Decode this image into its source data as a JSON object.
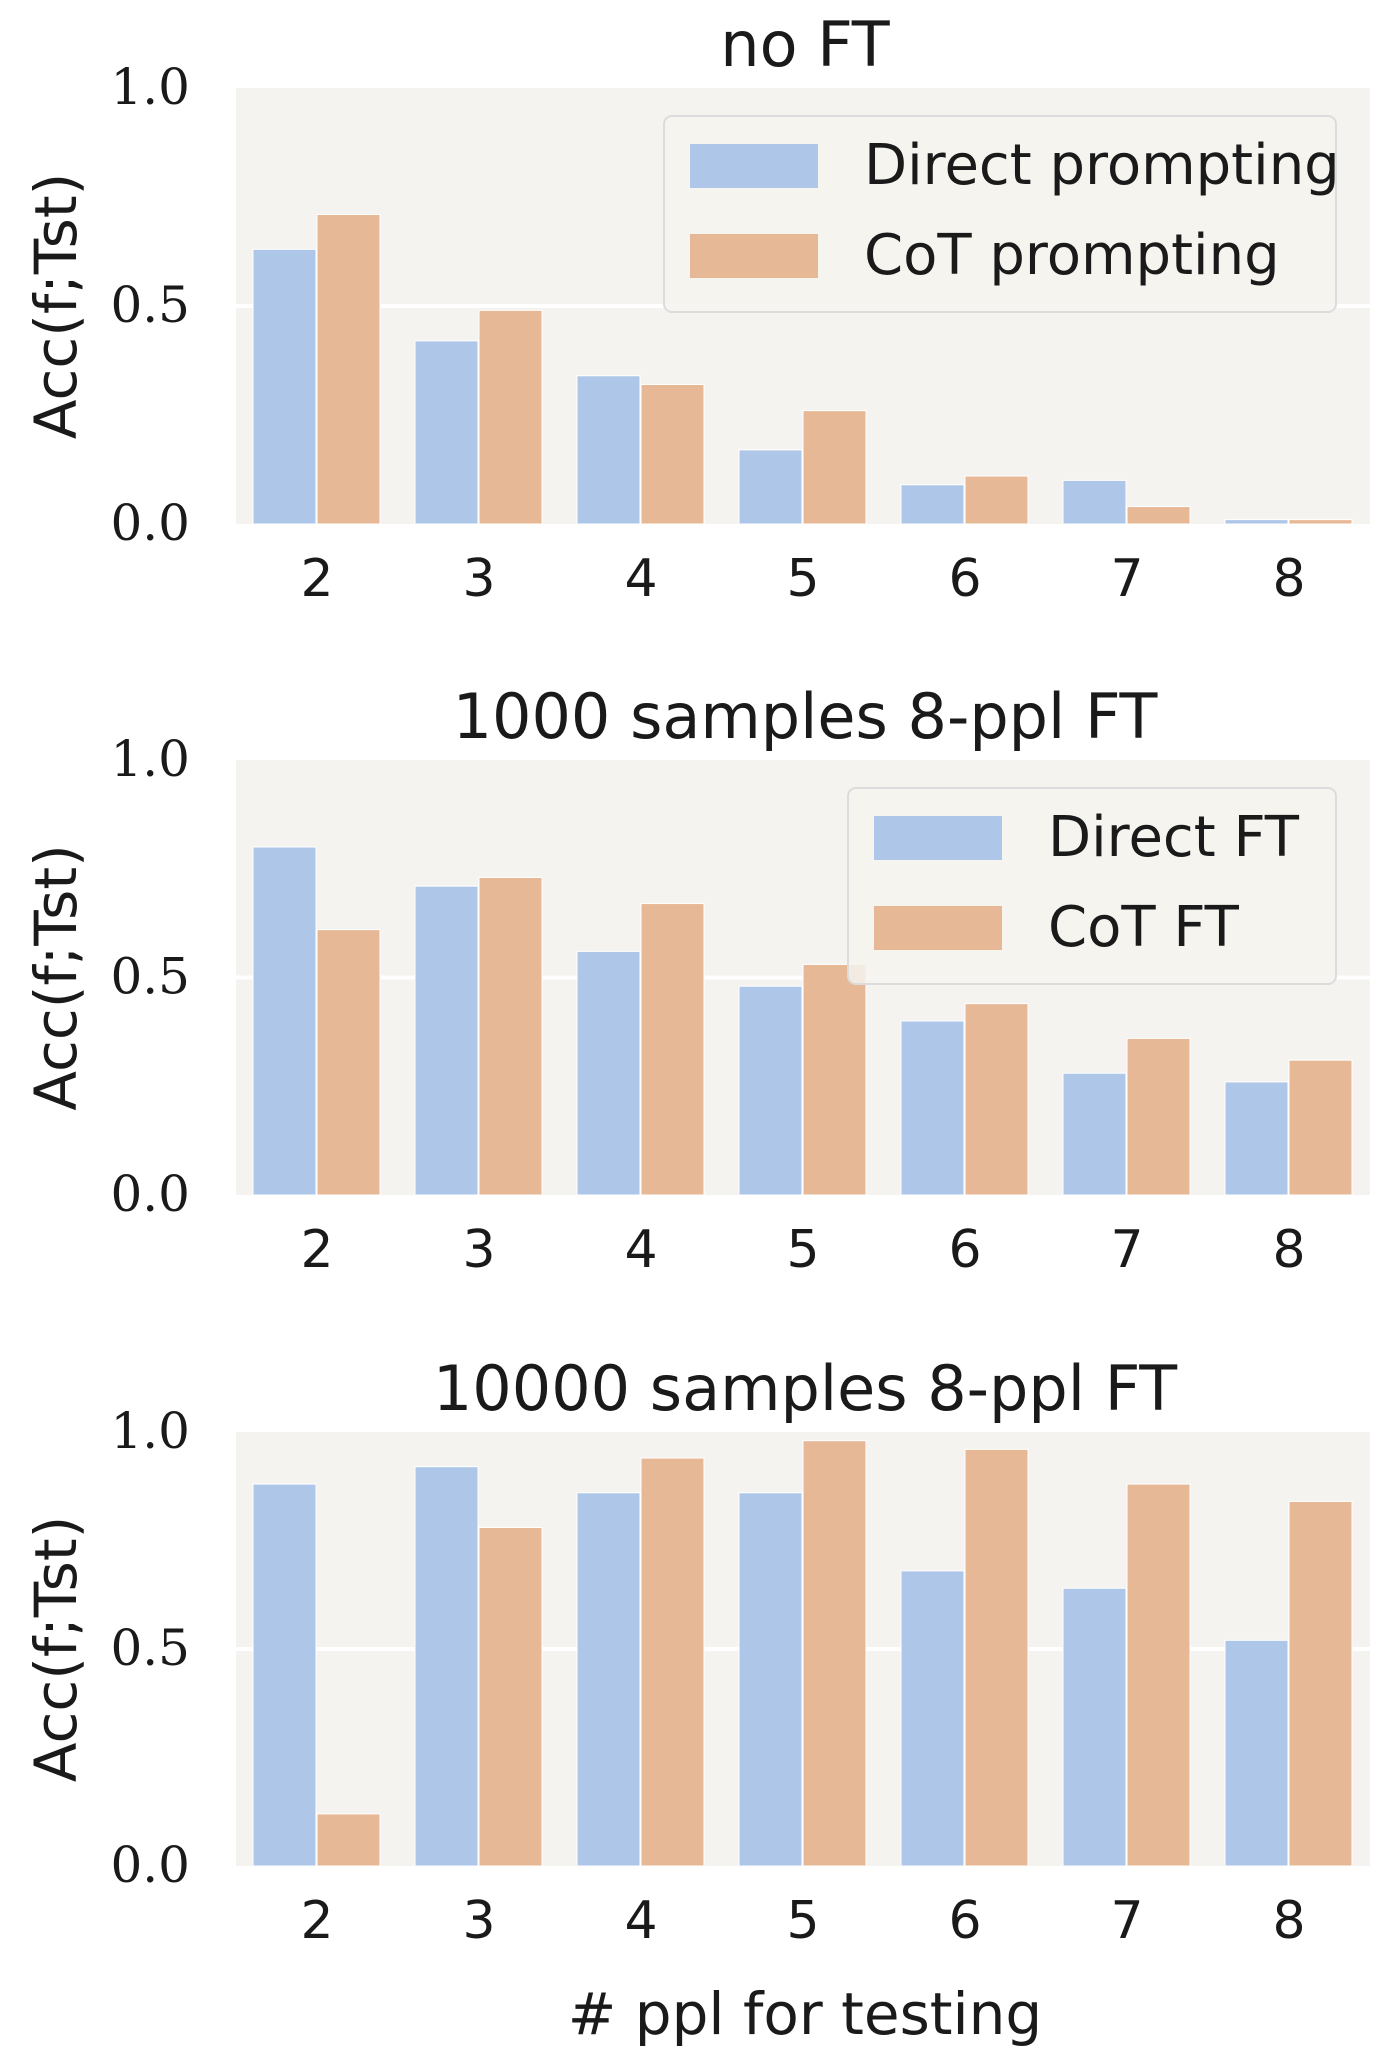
{
  "colors": {
    "panel_bg": "#f5f3ef",
    "grid": "#ffffff",
    "direct": "#aec7e8",
    "cot": "#e6b896",
    "legend_bg": "#f5f3ef",
    "legend_border": "#dcdcdc"
  },
  "xlabel": "# ppl for testing",
  "chart_data": [
    {
      "type": "bar",
      "title": "no FT",
      "ylabel": "Acc(f;Tst)",
      "categories": [
        "2",
        "3",
        "4",
        "5",
        "6",
        "7",
        "8"
      ],
      "ylim": [
        0,
        1.0
      ],
      "yticks": [
        "0.0",
        "0.5",
        "1.0"
      ],
      "legend_position": "top-right",
      "grid": true,
      "series": [
        {
          "name": "Direct prompting",
          "color_key": "direct",
          "values": [
            0.63,
            0.42,
            0.34,
            0.17,
            0.09,
            0.1,
            0.01
          ]
        },
        {
          "name": "CoT prompting",
          "color_key": "cot",
          "values": [
            0.71,
            0.49,
            0.32,
            0.26,
            0.11,
            0.04,
            0.01
          ]
        }
      ]
    },
    {
      "type": "bar",
      "title": "1000 samples 8-ppl FT",
      "ylabel": "Acc(f;Tst)",
      "categories": [
        "2",
        "3",
        "4",
        "5",
        "6",
        "7",
        "8"
      ],
      "ylim": [
        0,
        1.0
      ],
      "yticks": [
        "0.0",
        "0.5",
        "1.0"
      ],
      "legend_position": "top-right",
      "grid": true,
      "series": [
        {
          "name": "Direct FT",
          "color_key": "direct",
          "values": [
            0.8,
            0.71,
            0.56,
            0.48,
            0.4,
            0.28,
            0.26
          ]
        },
        {
          "name": "CoT FT",
          "color_key": "cot",
          "values": [
            0.61,
            0.73,
            0.67,
            0.53,
            0.44,
            0.36,
            0.31
          ]
        }
      ]
    },
    {
      "type": "bar",
      "title": "10000 samples 8-ppl FT",
      "ylabel": "Acc(f;Tst)",
      "categories": [
        "2",
        "3",
        "4",
        "5",
        "6",
        "7",
        "8"
      ],
      "ylim": [
        0,
        1.0
      ],
      "yticks": [
        "0.0",
        "0.5",
        "1.0"
      ],
      "grid": true,
      "series": [
        {
          "color_key": "direct",
          "values": [
            0.88,
            0.92,
            0.86,
            0.86,
            0.68,
            0.64,
            0.52
          ]
        },
        {
          "color_key": "cot",
          "values": [
            0.12,
            0.78,
            0.94,
            0.98,
            0.96,
            0.88,
            0.84
          ]
        }
      ]
    }
  ]
}
